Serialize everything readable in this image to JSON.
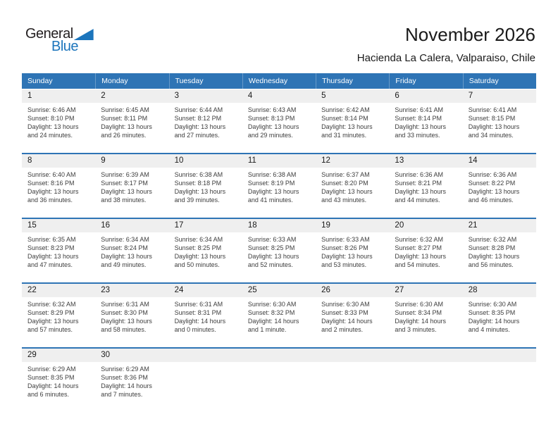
{
  "logo": {
    "part1": "General",
    "part2": "Blue"
  },
  "header": {
    "title": "November 2026",
    "subtitle": "Hacienda La Calera, Valparaiso, Chile"
  },
  "weekday_header": [
    "Sunday",
    "Monday",
    "Tuesday",
    "Wednesday",
    "Thursday",
    "Friday",
    "Saturday"
  ],
  "cell_labels": {
    "sunrise": "Sunrise:",
    "sunset": "Sunset:",
    "daylight": "Daylight:"
  },
  "colors": {
    "accent_blue": "#2e74b5",
    "logo_blue": "#1c75bc",
    "band_gray": "#efefef"
  },
  "weeks": [
    [
      {
        "day": "1",
        "sunrise": "6:46 AM",
        "sunset": "8:10 PM",
        "daylight": "13 hours and 24 minutes."
      },
      {
        "day": "2",
        "sunrise": "6:45 AM",
        "sunset": "8:11 PM",
        "daylight": "13 hours and 26 minutes."
      },
      {
        "day": "3",
        "sunrise": "6:44 AM",
        "sunset": "8:12 PM",
        "daylight": "13 hours and 27 minutes."
      },
      {
        "day": "4",
        "sunrise": "6:43 AM",
        "sunset": "8:13 PM",
        "daylight": "13 hours and 29 minutes."
      },
      {
        "day": "5",
        "sunrise": "6:42 AM",
        "sunset": "8:14 PM",
        "daylight": "13 hours and 31 minutes."
      },
      {
        "day": "6",
        "sunrise": "6:41 AM",
        "sunset": "8:14 PM",
        "daylight": "13 hours and 33 minutes."
      },
      {
        "day": "7",
        "sunrise": "6:41 AM",
        "sunset": "8:15 PM",
        "daylight": "13 hours and 34 minutes."
      }
    ],
    [
      {
        "day": "8",
        "sunrise": "6:40 AM",
        "sunset": "8:16 PM",
        "daylight": "13 hours and 36 minutes."
      },
      {
        "day": "9",
        "sunrise": "6:39 AM",
        "sunset": "8:17 PM",
        "daylight": "13 hours and 38 minutes."
      },
      {
        "day": "10",
        "sunrise": "6:38 AM",
        "sunset": "8:18 PM",
        "daylight": "13 hours and 39 minutes."
      },
      {
        "day": "11",
        "sunrise": "6:38 AM",
        "sunset": "8:19 PM",
        "daylight": "13 hours and 41 minutes."
      },
      {
        "day": "12",
        "sunrise": "6:37 AM",
        "sunset": "8:20 PM",
        "daylight": "13 hours and 43 minutes."
      },
      {
        "day": "13",
        "sunrise": "6:36 AM",
        "sunset": "8:21 PM",
        "daylight": "13 hours and 44 minutes."
      },
      {
        "day": "14",
        "sunrise": "6:36 AM",
        "sunset": "8:22 PM",
        "daylight": "13 hours and 46 minutes."
      }
    ],
    [
      {
        "day": "15",
        "sunrise": "6:35 AM",
        "sunset": "8:23 PM",
        "daylight": "13 hours and 47 minutes."
      },
      {
        "day": "16",
        "sunrise": "6:34 AM",
        "sunset": "8:24 PM",
        "daylight": "13 hours and 49 minutes."
      },
      {
        "day": "17",
        "sunrise": "6:34 AM",
        "sunset": "8:25 PM",
        "daylight": "13 hours and 50 minutes."
      },
      {
        "day": "18",
        "sunrise": "6:33 AM",
        "sunset": "8:25 PM",
        "daylight": "13 hours and 52 minutes."
      },
      {
        "day": "19",
        "sunrise": "6:33 AM",
        "sunset": "8:26 PM",
        "daylight": "13 hours and 53 minutes."
      },
      {
        "day": "20",
        "sunrise": "6:32 AM",
        "sunset": "8:27 PM",
        "daylight": "13 hours and 54 minutes."
      },
      {
        "day": "21",
        "sunrise": "6:32 AM",
        "sunset": "8:28 PM",
        "daylight": "13 hours and 56 minutes."
      }
    ],
    [
      {
        "day": "22",
        "sunrise": "6:32 AM",
        "sunset": "8:29 PM",
        "daylight": "13 hours and 57 minutes."
      },
      {
        "day": "23",
        "sunrise": "6:31 AM",
        "sunset": "8:30 PM",
        "daylight": "13 hours and 58 minutes."
      },
      {
        "day": "24",
        "sunrise": "6:31 AM",
        "sunset": "8:31 PM",
        "daylight": "14 hours and 0 minutes."
      },
      {
        "day": "25",
        "sunrise": "6:30 AM",
        "sunset": "8:32 PM",
        "daylight": "14 hours and 1 minute."
      },
      {
        "day": "26",
        "sunrise": "6:30 AM",
        "sunset": "8:33 PM",
        "daylight": "14 hours and 2 minutes."
      },
      {
        "day": "27",
        "sunrise": "6:30 AM",
        "sunset": "8:34 PM",
        "daylight": "14 hours and 3 minutes."
      },
      {
        "day": "28",
        "sunrise": "6:30 AM",
        "sunset": "8:35 PM",
        "daylight": "14 hours and 4 minutes."
      }
    ],
    [
      {
        "day": "29",
        "sunrise": "6:29 AM",
        "sunset": "8:35 PM",
        "daylight": "14 hours and 6 minutes."
      },
      {
        "day": "30",
        "sunrise": "6:29 AM",
        "sunset": "8:36 PM",
        "daylight": "14 hours and 7 minutes."
      },
      null,
      null,
      null,
      null,
      null
    ]
  ]
}
